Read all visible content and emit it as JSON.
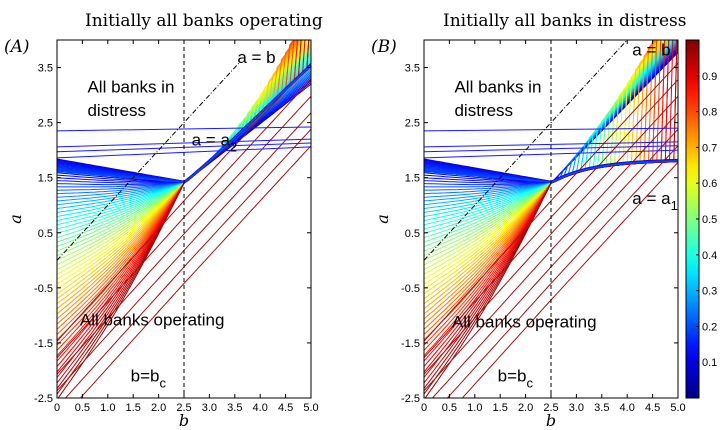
{
  "chart_data": [
    {
      "type": "line",
      "panel_label": "(A)",
      "title": "Initially all banks operating",
      "xlabel": "b",
      "ylabel": "a",
      "xlim": [
        0,
        5
      ],
      "ylim": [
        -2.5,
        4
      ],
      "xticks": [
        "0",
        "0.5",
        "1.0",
        "1.5",
        "2.0",
        "2.5",
        "3.0",
        "3.5",
        "4.0",
        "4.5",
        "5.0"
      ],
      "yticks": [
        "-2.5",
        "-1.5",
        "-0.5",
        "0.5",
        "1.5",
        "2.5",
        "3.5"
      ],
      "grid": false,
      "reference_lines": [
        {
          "kind": "vertical",
          "x": 2.5,
          "style": "dashed",
          "color": "#000000"
        },
        {
          "kind": "diagonal",
          "points": [
            [
              0,
              0
            ],
            [
              3.6,
              3.6
            ]
          ],
          "style": "dash-dot",
          "color": "#000000"
        }
      ],
      "upper_families": [
        {
          "a0": 2.35,
          "a_end": 2.42
        },
        {
          "a0": 2.06,
          "a_end": 2.2
        },
        {
          "a0": 1.97,
          "a_end": 2.13
        },
        {
          "a0": 1.86,
          "a_end": 2.06
        }
      ],
      "annotations": [
        {
          "text": "All banks in",
          "x": 0.6,
          "y": 3.05
        },
        {
          "text": "distress",
          "x": 0.6,
          "y": 2.62
        },
        {
          "text": "a = b",
          "x": 3.55,
          "y": 3.58
        },
        {
          "text": "a = a",
          "sub": "2",
          "x": 2.65,
          "y": 2.08
        },
        {
          "text": "All banks operating",
          "x": 0.45,
          "y": -1.18
        },
        {
          "text": "b=b",
          "sub": "c",
          "x": 1.45,
          "y": -2.2
        }
      ]
    },
    {
      "type": "line",
      "panel_label": "(B)",
      "title": "Initially all banks in distress",
      "xlabel": "b",
      "ylabel": "a",
      "xlim": [
        0,
        5
      ],
      "ylim": [
        -2.5,
        4
      ],
      "xticks": [
        "0",
        "0.5",
        "1.0",
        "1.5",
        "2.0",
        "2.5",
        "3.0",
        "3.5",
        "4.0",
        "4.5",
        "5.0"
      ],
      "yticks": [
        "-2.5",
        "-1.5",
        "-0.5",
        "0.5",
        "1.5",
        "2.5",
        "3.5"
      ],
      "grid": false,
      "reference_lines": [
        {
          "kind": "vertical",
          "x": 2.5,
          "style": "dashed",
          "color": "#000000"
        },
        {
          "kind": "diagonal",
          "points": [
            [
              0,
              0
            ],
            [
              4,
              4
            ]
          ],
          "style": "dash-dot",
          "color": "#000000"
        }
      ],
      "upper_families": [
        {
          "a0": 2.35,
          "a_end": 2.4
        },
        {
          "a0": 2.06,
          "a_end": 2.15
        },
        {
          "a0": 1.97,
          "a_end": 2.08
        },
        {
          "a0": 1.86,
          "a_end": 2.0
        }
      ],
      "annotations": [
        {
          "text": "All banks in",
          "x": 0.6,
          "y": 3.05
        },
        {
          "text": "distress",
          "x": 0.6,
          "y": 2.62
        },
        {
          "text": "a = b",
          "x": 4.1,
          "y": 3.72
        },
        {
          "text": "a = a",
          "sub": "1",
          "x": 4.1,
          "y": 1.02
        },
        {
          "text": "All banks operating",
          "x": 0.55,
          "y": -1.22
        },
        {
          "text": "b=b",
          "sub": "c",
          "x": 1.45,
          "y": -2.2
        }
      ]
    }
  ],
  "colorbar": {
    "colormap": "jet",
    "range": [
      0,
      1
    ],
    "ticks": [
      "0.1",
      "0.2",
      "0.3",
      "0.4",
      "0.5",
      "0.6",
      "0.7",
      "0.8",
      "0.9"
    ]
  }
}
